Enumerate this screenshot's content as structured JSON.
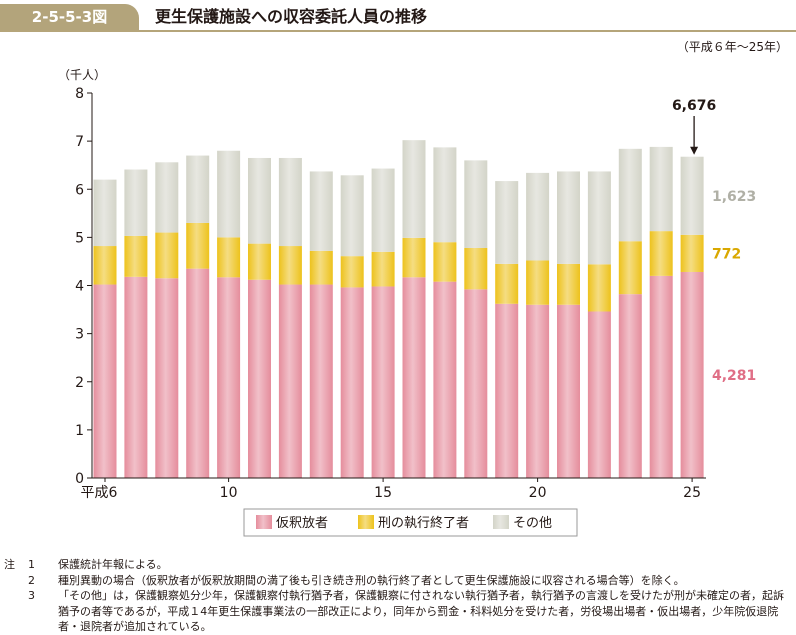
{
  "figure": {
    "number": "2-5-5-3図",
    "title": "更生保護施設への収容委託人員の推移",
    "period": "（平成６年～25年）"
  },
  "chart_data": {
    "type": "bar",
    "stacked": true,
    "unit_label": "（千人）",
    "ylim": [
      0,
      8
    ],
    "y_ticks": [
      "0",
      "1",
      "2",
      "3",
      "4",
      "5",
      "6",
      "7",
      "8"
    ],
    "grid": false,
    "legend_position": "bottom",
    "x": [
      6,
      7,
      8,
      9,
      10,
      11,
      12,
      13,
      14,
      15,
      16,
      17,
      18,
      19,
      20,
      21,
      22,
      23,
      24,
      25
    ],
    "x_tick_labels": [
      {
        "x": 6,
        "label": "平成6"
      },
      {
        "x": 10,
        "label": "10"
      },
      {
        "x": 15,
        "label": "15"
      },
      {
        "x": 20,
        "label": "20"
      },
      {
        "x": 25,
        "label": "25"
      }
    ],
    "series": [
      {
        "name": "仮釈放者",
        "color": "#e58d9c",
        "values": [
          4.02,
          4.18,
          4.15,
          4.35,
          4.17,
          4.12,
          4.02,
          4.02,
          3.96,
          3.98,
          4.17,
          4.08,
          3.92,
          3.62,
          3.6,
          3.6,
          3.46,
          3.82,
          4.2,
          4.281
        ]
      },
      {
        "name": "刑の執行終了者",
        "color": "#edc21c",
        "values": [
          0.8,
          0.85,
          0.95,
          0.95,
          0.83,
          0.75,
          0.8,
          0.7,
          0.65,
          0.72,
          0.82,
          0.82,
          0.86,
          0.83,
          0.92,
          0.85,
          0.98,
          1.1,
          0.93,
          0.772
        ]
      },
      {
        "name": "その他",
        "color": "#d3d4c8",
        "values": [
          1.38,
          1.38,
          1.46,
          1.4,
          1.8,
          1.78,
          1.83,
          1.65,
          1.68,
          1.73,
          2.03,
          1.97,
          1.82,
          1.72,
          1.82,
          1.92,
          1.93,
          1.92,
          1.75,
          1.623
        ]
      }
    ],
    "annotations": {
      "total_label": "6,676",
      "total_x": 25,
      "series_labels": [
        {
          "series": "その他",
          "label": "1,623",
          "color": "#b0b0a6"
        },
        {
          "series": "刑の執行終了者",
          "label": "772",
          "color": "#d9a800"
        },
        {
          "series": "仮釈放者",
          "label": "4,281",
          "color": "#e06f86"
        }
      ]
    }
  },
  "notes": {
    "head": "注",
    "items": [
      {
        "num": "1",
        "text": "保護統計年報による。"
      },
      {
        "num": "2",
        "text": "種別異動の場合（仮釈放者が仮釈放期間の満了後も引き続き刑の執行終了者として更生保護施設に収容される場合等）を除く。"
      },
      {
        "num": "3",
        "text": "「その他」は，保護観察処分少年，保護観察付執行猶予者，保護観察に付されない執行猶予者，執行猶予の言渡しを受けたが刑が未確定の者，起訴猶予の者等であるが，平成１4年更生保護事業法の一部改正により，同年から罰金・科料処分を受けた者，労役場出場者・仮出場者，少年院仮退院者・退院者が追加されている。"
      }
    ]
  }
}
